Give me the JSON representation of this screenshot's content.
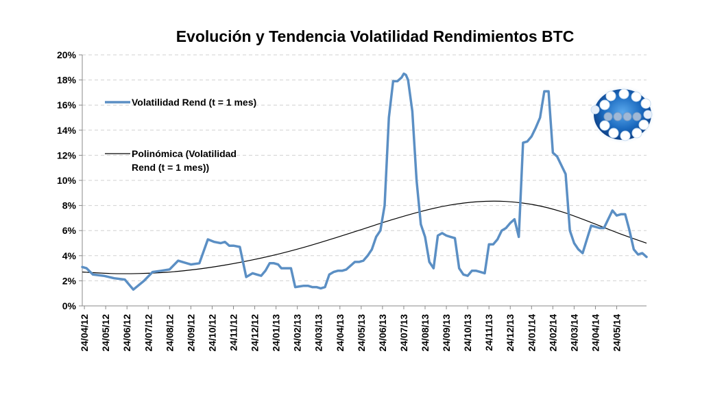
{
  "chart_data": {
    "type": "line",
    "title": "Evolución y Tendencia Volatilidad Rendimientos BTC",
    "xlabel": "",
    "ylabel": "",
    "ylim": [
      0,
      20
    ],
    "y_ticks": [
      "0%",
      "2%",
      "4%",
      "6%",
      "8%",
      "10%",
      "12%",
      "14%",
      "16%",
      "18%",
      "20%"
    ],
    "x_ticks": [
      "24/04/12",
      "24/05/12",
      "24/06/12",
      "24/07/12",
      "24/08/12",
      "24/09/12",
      "24/10/12",
      "24/11/12",
      "24/12/12",
      "24/01/13",
      "24/02/13",
      "24/03/13",
      "24/04/13",
      "24/05/13",
      "24/06/13",
      "24/07/13",
      "24/08/13",
      "24/09/13",
      "24/10/13",
      "24/11/13",
      "24/12/13",
      "24/01/14",
      "24/02/14",
      "24/03/14",
      "24/04/14",
      "24/05/14"
    ],
    "grid": true,
    "legend_position": "left-inside",
    "series": [
      {
        "name": "Volatilidad Rend (t = 1 mes)",
        "color": "#5b8fc4",
        "x": [
          0,
          0.2,
          0.5,
          1,
          1.5,
          2,
          2.4,
          2.9,
          3.3,
          3.7,
          4.1,
          4.5,
          5.1,
          5.5,
          5.9,
          6.2,
          6.5,
          6.7,
          6.9,
          7.1,
          7.4,
          7.7,
          8,
          8.2,
          8.4,
          8.6,
          8.8,
          9,
          9.2,
          9.35,
          9.45,
          9.6,
          9.8,
          10,
          10.2,
          10.4,
          10.6,
          10.8,
          11,
          11.2,
          11.4,
          11.6,
          11.8,
          12,
          12.2,
          12.4,
          12.6,
          12.8,
          13,
          13.2,
          13.4,
          13.6,
          13.8,
          14,
          14.2,
          14.4,
          14.6,
          14.8,
          15,
          15.1,
          15.2,
          15.3,
          15.5,
          15.7,
          15.9,
          16.1,
          16.3,
          16.5,
          16.7,
          16.9,
          17.1,
          17.3,
          17.5,
          17.7,
          17.9,
          18.1,
          18.3,
          18.5,
          18.7,
          18.9,
          19.1,
          19.3,
          19.5,
          19.7,
          19.9,
          20.1,
          20.3,
          20.5,
          20.7,
          20.9,
          21.1,
          21.3,
          21.5,
          21.7,
          21.9,
          22.1,
          22.3,
          22.5,
          22.7,
          22.9,
          23.1,
          23.3,
          23.5,
          23.7,
          23.9,
          24.1,
          24.3,
          24.5,
          24.7,
          24.9,
          25.1,
          25.3,
          25.5,
          25.7,
          25.9,
          26.1,
          26.3,
          26.5
        ],
        "values": [
          3.1,
          3.0,
          2.5,
          2.4,
          2.2,
          2.1,
          1.3,
          2.0,
          2.7,
          2.8,
          2.9,
          3.6,
          3.3,
          3.4,
          5.3,
          5.1,
          5.0,
          5.1,
          4.8,
          4.8,
          4.7,
          2.3,
          2.6,
          2.5,
          2.4,
          2.8,
          3.4,
          3.4,
          3.3,
          3.0,
          3.0,
          3.0,
          3.0,
          1.5,
          1.55,
          1.6,
          1.6,
          1.5,
          1.5,
          1.4,
          1.5,
          2.5,
          2.7,
          2.8,
          2.8,
          2.9,
          3.2,
          3.5,
          3.5,
          3.6,
          4.0,
          4.5,
          5.5,
          6.0,
          8.0,
          15.0,
          17.9,
          17.9,
          18.2,
          18.5,
          18.4,
          18.0,
          15.5,
          10.0,
          6.5,
          5.5,
          3.5,
          3.0,
          5.6,
          5.8,
          5.6,
          5.5,
          5.4,
          3.0,
          2.5,
          2.4,
          2.8,
          2.8,
          2.7,
          2.6,
          4.9,
          4.9,
          5.3,
          6.0,
          6.2,
          6.6,
          6.9,
          5.5,
          13.0,
          13.1,
          13.5,
          14.2,
          15.0,
          17.1,
          17.1,
          12.2,
          11.9,
          11.2,
          10.5,
          6.0,
          5.0,
          4.5,
          4.2,
          5.3,
          6.4,
          6.3,
          6.2,
          6.2,
          6.9,
          7.6,
          7.2,
          7.3,
          7.3,
          6.0,
          4.5,
          4.1,
          4.2,
          3.9
        ]
      },
      {
        "name": "Polinómica (Volatilidad Rend (t = 1 mes))",
        "color": "#000000",
        "x": [
          0,
          1.325,
          2.65,
          3.975,
          5.3,
          6.625,
          7.95,
          9.275,
          10.6,
          11.925,
          13.25,
          14.575,
          15.9,
          17.225,
          18.55,
          19.875,
          21.2,
          22.525,
          23.85,
          25.175,
          26.5
        ],
        "values": [
          2.7,
          2.58,
          2.58,
          2.68,
          2.9,
          3.23,
          3.65,
          4.16,
          4.76,
          5.44,
          6.16,
          6.88,
          7.52,
          8.02,
          8.3,
          8.32,
          8.06,
          7.5,
          6.68,
          5.8,
          5.0
        ]
      }
    ],
    "legend": {
      "series1_label": "Volatilidad Rend (t = 1 mes)",
      "series2_label_line1": "Polinómica (Volatilidad",
      "series2_label_line2": "Rend (t = 1 mes))"
    },
    "colors": {
      "series1": "#5b8fc4",
      "trend": "#000000",
      "logo_blue": "#1f6fc0"
    }
  }
}
